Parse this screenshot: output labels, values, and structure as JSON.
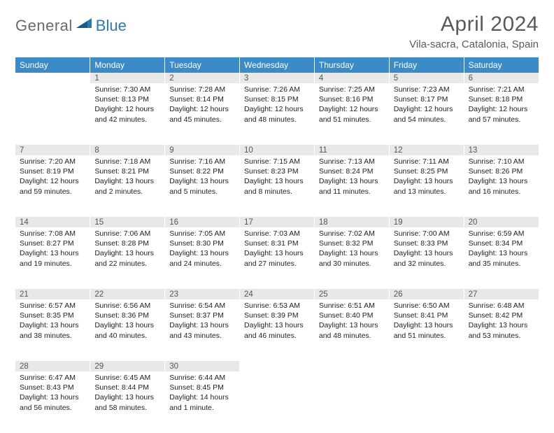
{
  "logo": {
    "text1": "General",
    "text2": "Blue"
  },
  "title": "April 2024",
  "location": "Vila-sacra, Catalonia, Spain",
  "colors": {
    "header_bg": "#3b8bc8",
    "header_text": "#ffffff",
    "daynum_bg": "#e8e8e8",
    "border": "#3b7bb0",
    "logo_gray": "#6a6a6a",
    "logo_blue": "#2a7ab8",
    "title_color": "#5a5a5a"
  },
  "dayHeaders": [
    "Sunday",
    "Monday",
    "Tuesday",
    "Wednesday",
    "Thursday",
    "Friday",
    "Saturday"
  ],
  "weeks": [
    [
      null,
      {
        "n": "1",
        "sr": "7:30 AM",
        "ss": "8:13 PM",
        "dl": "12 hours and 42 minutes."
      },
      {
        "n": "2",
        "sr": "7:28 AM",
        "ss": "8:14 PM",
        "dl": "12 hours and 45 minutes."
      },
      {
        "n": "3",
        "sr": "7:26 AM",
        "ss": "8:15 PM",
        "dl": "12 hours and 48 minutes."
      },
      {
        "n": "4",
        "sr": "7:25 AM",
        "ss": "8:16 PM",
        "dl": "12 hours and 51 minutes."
      },
      {
        "n": "5",
        "sr": "7:23 AM",
        "ss": "8:17 PM",
        "dl": "12 hours and 54 minutes."
      },
      {
        "n": "6",
        "sr": "7:21 AM",
        "ss": "8:18 PM",
        "dl": "12 hours and 57 minutes."
      }
    ],
    [
      {
        "n": "7",
        "sr": "7:20 AM",
        "ss": "8:19 PM",
        "dl": "12 hours and 59 minutes."
      },
      {
        "n": "8",
        "sr": "7:18 AM",
        "ss": "8:21 PM",
        "dl": "13 hours and 2 minutes."
      },
      {
        "n": "9",
        "sr": "7:16 AM",
        "ss": "8:22 PM",
        "dl": "13 hours and 5 minutes."
      },
      {
        "n": "10",
        "sr": "7:15 AM",
        "ss": "8:23 PM",
        "dl": "13 hours and 8 minutes."
      },
      {
        "n": "11",
        "sr": "7:13 AM",
        "ss": "8:24 PM",
        "dl": "13 hours and 11 minutes."
      },
      {
        "n": "12",
        "sr": "7:11 AM",
        "ss": "8:25 PM",
        "dl": "13 hours and 13 minutes."
      },
      {
        "n": "13",
        "sr": "7:10 AM",
        "ss": "8:26 PM",
        "dl": "13 hours and 16 minutes."
      }
    ],
    [
      {
        "n": "14",
        "sr": "7:08 AM",
        "ss": "8:27 PM",
        "dl": "13 hours and 19 minutes."
      },
      {
        "n": "15",
        "sr": "7:06 AM",
        "ss": "8:28 PM",
        "dl": "13 hours and 22 minutes."
      },
      {
        "n": "16",
        "sr": "7:05 AM",
        "ss": "8:30 PM",
        "dl": "13 hours and 24 minutes."
      },
      {
        "n": "17",
        "sr": "7:03 AM",
        "ss": "8:31 PM",
        "dl": "13 hours and 27 minutes."
      },
      {
        "n": "18",
        "sr": "7:02 AM",
        "ss": "8:32 PM",
        "dl": "13 hours and 30 minutes."
      },
      {
        "n": "19",
        "sr": "7:00 AM",
        "ss": "8:33 PM",
        "dl": "13 hours and 32 minutes."
      },
      {
        "n": "20",
        "sr": "6:59 AM",
        "ss": "8:34 PM",
        "dl": "13 hours and 35 minutes."
      }
    ],
    [
      {
        "n": "21",
        "sr": "6:57 AM",
        "ss": "8:35 PM",
        "dl": "13 hours and 38 minutes."
      },
      {
        "n": "22",
        "sr": "6:56 AM",
        "ss": "8:36 PM",
        "dl": "13 hours and 40 minutes."
      },
      {
        "n": "23",
        "sr": "6:54 AM",
        "ss": "8:37 PM",
        "dl": "13 hours and 43 minutes."
      },
      {
        "n": "24",
        "sr": "6:53 AM",
        "ss": "8:39 PM",
        "dl": "13 hours and 46 minutes."
      },
      {
        "n": "25",
        "sr": "6:51 AM",
        "ss": "8:40 PM",
        "dl": "13 hours and 48 minutes."
      },
      {
        "n": "26",
        "sr": "6:50 AM",
        "ss": "8:41 PM",
        "dl": "13 hours and 51 minutes."
      },
      {
        "n": "27",
        "sr": "6:48 AM",
        "ss": "8:42 PM",
        "dl": "13 hours and 53 minutes."
      }
    ],
    [
      {
        "n": "28",
        "sr": "6:47 AM",
        "ss": "8:43 PM",
        "dl": "13 hours and 56 minutes."
      },
      {
        "n": "29",
        "sr": "6:45 AM",
        "ss": "8:44 PM",
        "dl": "13 hours and 58 minutes."
      },
      {
        "n": "30",
        "sr": "6:44 AM",
        "ss": "8:45 PM",
        "dl": "14 hours and 1 minute."
      },
      null,
      null,
      null,
      null
    ]
  ],
  "labels": {
    "sunrise": "Sunrise:",
    "sunset": "Sunset:",
    "daylight": "Daylight:"
  }
}
